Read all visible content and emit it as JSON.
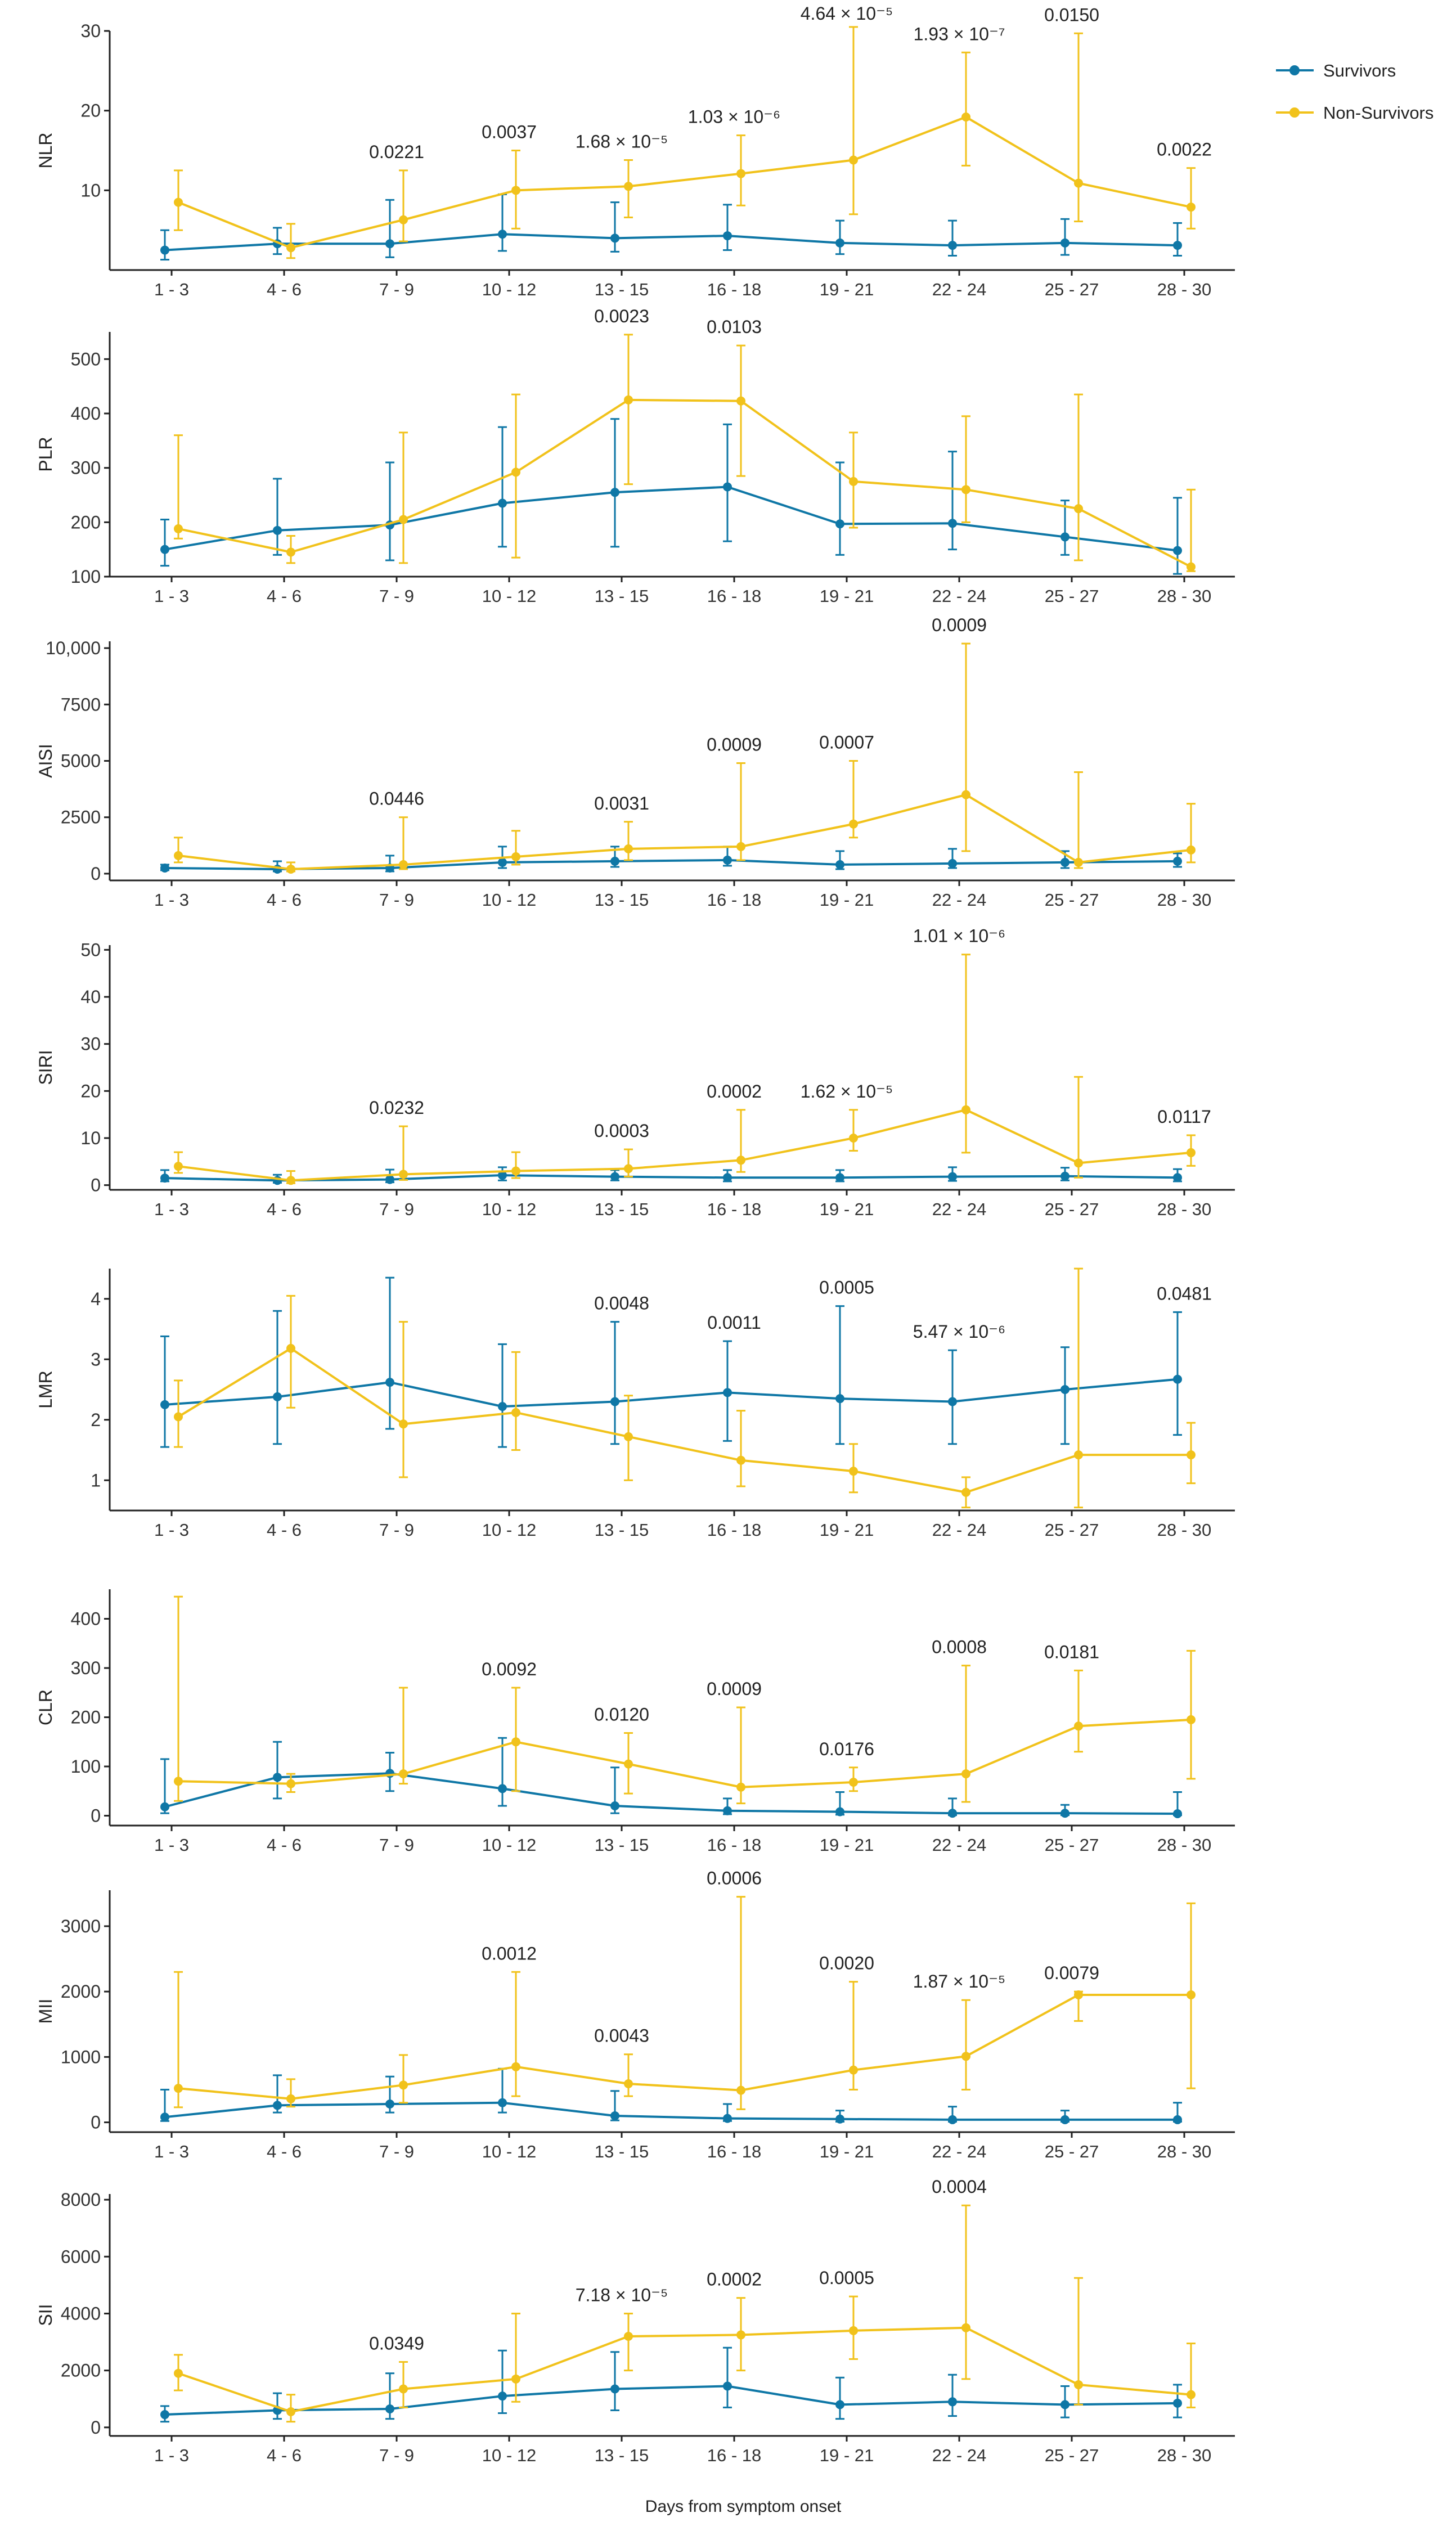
{
  "legend": {
    "position": "top-right",
    "items": [
      {
        "name": "Survivors",
        "color": "#0f77a6"
      },
      {
        "name": "Non-Survivors",
        "color": "#f1c21b"
      }
    ]
  },
  "xlabel": "Days from symptom onset",
  "categories": [
    "1 - 3",
    "4 - 6",
    "7 - 9",
    "10 - 12",
    "13 - 15",
    "16 - 18",
    "19 - 21",
    "22 - 24",
    "25 - 27",
    "28 - 30"
  ],
  "chart_data": [
    {
      "type": "line",
      "ylabel": "NLR",
      "ylim": [
        0,
        30
      ],
      "yticks": [
        10,
        20,
        30
      ],
      "ytick_labels": [
        "10",
        "20",
        "30"
      ],
      "grid": false,
      "series": [
        {
          "name": "Survivors",
          "values": [
            2.5,
            3.3,
            3.3,
            4.5,
            4.0,
            4.3,
            3.4,
            3.1,
            3.4,
            3.1
          ],
          "lower": [
            1.3,
            2.0,
            1.6,
            2.4,
            2.3,
            2.5,
            2.0,
            1.8,
            1.9,
            1.8
          ],
          "upper": [
            5.0,
            5.3,
            8.8,
            9.5,
            8.5,
            8.2,
            6.2,
            6.2,
            6.4,
            5.9
          ]
        },
        {
          "name": "Non-Survivors",
          "values": [
            8.5,
            2.8,
            6.3,
            10.0,
            10.5,
            12.1,
            13.8,
            19.2,
            10.9,
            7.9
          ],
          "lower": [
            5.0,
            1.5,
            3.6,
            5.2,
            6.6,
            8.1,
            7.0,
            13.1,
            6.1,
            5.2
          ],
          "upper": [
            12.5,
            5.8,
            12.5,
            15.0,
            13.8,
            16.9,
            30.5,
            27.3,
            29.7,
            12.8
          ]
        }
      ],
      "annotations": [
        {
          "index": 2,
          "text": "0.0221"
        },
        {
          "index": 3,
          "text": "0.0037"
        },
        {
          "index": 4,
          "text": "1.68 × 10⁻⁵"
        },
        {
          "index": 5,
          "text": "1.03 × 10⁻⁶"
        },
        {
          "index": 6,
          "text": "4.64 × 10⁻⁵"
        },
        {
          "index": 7,
          "text": "1.93 × 10⁻⁷"
        },
        {
          "index": 8,
          "text": "0.0150"
        },
        {
          "index": 9,
          "text": "0.0022"
        }
      ]
    },
    {
      "type": "line",
      "ylabel": "PLR",
      "ylim": [
        100,
        550
      ],
      "yticks": [
        100,
        200,
        300,
        400,
        500
      ],
      "ytick_labels": [
        "100",
        "200",
        "300",
        "400",
        "500"
      ],
      "grid": false,
      "series": [
        {
          "name": "Survivors",
          "values": [
            150,
            185,
            195,
            235,
            255,
            265,
            197,
            198,
            173,
            148
          ],
          "lower": [
            120,
            140,
            130,
            155,
            155,
            165,
            140,
            150,
            140,
            105
          ],
          "upper": [
            205,
            280,
            310,
            375,
            390,
            380,
            310,
            330,
            240,
            245
          ]
        },
        {
          "name": "Non-Survivors",
          "values": [
            188,
            145,
            205,
            292,
            425,
            423,
            275,
            260,
            225,
            118
          ],
          "lower": [
            170,
            125,
            125,
            135,
            270,
            285,
            190,
            200,
            130,
            110
          ],
          "upper": [
            360,
            175,
            365,
            435,
            545,
            525,
            365,
            395,
            435,
            260
          ]
        }
      ],
      "annotations": [
        {
          "index": 4,
          "text": "0.0023"
        },
        {
          "index": 5,
          "text": "0.0103"
        }
      ]
    },
    {
      "type": "line",
      "ylabel": "AISI",
      "ylim": [
        -300,
        10300
      ],
      "yticks": [
        0,
        2500,
        5000,
        7500,
        10000
      ],
      "ytick_labels": [
        "0",
        "2500",
        "5000",
        "7500",
        "10,000"
      ],
      "grid": false,
      "series": [
        {
          "name": "Survivors",
          "values": [
            250,
            200,
            250,
            500,
            550,
            600,
            400,
            450,
            500,
            550
          ],
          "lower": [
            150,
            100,
            100,
            250,
            300,
            350,
            200,
            250,
            250,
            300
          ],
          "upper": [
            400,
            550,
            800,
            1200,
            1200,
            1200,
            1000,
            1100,
            1000,
            900
          ]
        },
        {
          "name": "Non-Survivors",
          "values": [
            800,
            200,
            400,
            750,
            1100,
            1200,
            2200,
            3500,
            500,
            1050
          ],
          "lower": [
            500,
            100,
            200,
            400,
            600,
            600,
            1600,
            1000,
            250,
            500
          ],
          "upper": [
            1600,
            500,
            2500,
            1900,
            2300,
            4900,
            5000,
            10200,
            4500,
            3100
          ]
        }
      ],
      "annotations": [
        {
          "index": 2,
          "text": "0.0446"
        },
        {
          "index": 4,
          "text": "0.0031"
        },
        {
          "index": 5,
          "text": "0.0009"
        },
        {
          "index": 6,
          "text": "0.0007"
        },
        {
          "index": 7,
          "text": "0.0009"
        }
      ]
    },
    {
      "type": "line",
      "ylabel": "SIRI",
      "ylim": [
        -1,
        51
      ],
      "yticks": [
        0,
        10,
        20,
        30,
        40,
        50
      ],
      "ytick_labels": [
        "0",
        "10",
        "20",
        "30",
        "40",
        "50"
      ],
      "grid": false,
      "series": [
        {
          "name": "Survivors",
          "values": [
            1.5,
            1.0,
            1.2,
            2.1,
            1.8,
            1.6,
            1.6,
            1.8,
            1.9,
            1.6
          ],
          "lower": [
            0.8,
            0.5,
            0.6,
            1.0,
            1.0,
            0.8,
            0.8,
            0.9,
            1.0,
            0.8
          ],
          "upper": [
            3.2,
            2.2,
            3.3,
            3.8,
            3.2,
            3.2,
            3.2,
            3.8,
            3.7,
            3.4
          ]
        },
        {
          "name": "Non-Survivors",
          "values": [
            4.0,
            1.0,
            2.3,
            3.0,
            3.5,
            5.3,
            10.0,
            16.0,
            4.7,
            6.9
          ],
          "lower": [
            2.6,
            0.4,
            1.1,
            1.5,
            1.8,
            2.8,
            7.3,
            6.9,
            1.6,
            4.1
          ],
          "upper": [
            7.0,
            3.0,
            12.5,
            7.0,
            7.6,
            16.0,
            16.0,
            49.0,
            23.0,
            10.6
          ]
        }
      ],
      "annotations": [
        {
          "index": 2,
          "text": "0.0232"
        },
        {
          "index": 4,
          "text": "0.0003"
        },
        {
          "index": 5,
          "text": "0.0002"
        },
        {
          "index": 6,
          "text": "1.62 × 10⁻⁵"
        },
        {
          "index": 7,
          "text": "1.01 × 10⁻⁶"
        },
        {
          "index": 9,
          "text": "0.0117"
        }
      ]
    },
    {
      "type": "line",
      "ylabel": "LMR",
      "ylim": [
        0.5,
        4.5
      ],
      "yticks": [
        1,
        2,
        3,
        4
      ],
      "ytick_labels": [
        "1",
        "2",
        "3",
        "4"
      ],
      "grid": false,
      "series": [
        {
          "name": "Survivors",
          "values": [
            2.25,
            2.38,
            2.62,
            2.22,
            2.3,
            2.45,
            2.35,
            2.3,
            2.5,
            2.67
          ],
          "lower": [
            1.55,
            1.6,
            1.85,
            1.55,
            1.6,
            1.65,
            1.6,
            1.6,
            1.6,
            1.75
          ],
          "upper": [
            3.38,
            3.8,
            4.35,
            3.25,
            3.62,
            3.3,
            3.88,
            3.15,
            3.2,
            3.78
          ]
        },
        {
          "name": "Non-Survivors",
          "values": [
            2.05,
            3.18,
            1.93,
            2.12,
            1.72,
            1.33,
            1.15,
            0.8,
            1.42,
            1.42
          ],
          "lower": [
            1.55,
            2.2,
            1.05,
            1.5,
            1.0,
            0.9,
            0.8,
            0.55,
            0.55,
            0.95
          ],
          "upper": [
            2.65,
            4.05,
            3.62,
            3.12,
            2.4,
            2.15,
            1.6,
            1.05,
            4.5,
            1.95
          ]
        }
      ],
      "annotations": [
        {
          "index": 4,
          "text": "0.0048"
        },
        {
          "index": 5,
          "text": "0.0011"
        },
        {
          "index": 6,
          "text": "0.0005"
        },
        {
          "index": 7,
          "text": "5.47 × 10⁻⁶"
        },
        {
          "index": 9,
          "text": "0.0481"
        }
      ]
    },
    {
      "type": "line",
      "ylabel": "CLR",
      "ylim": [
        -20,
        460
      ],
      "yticks": [
        0,
        100,
        200,
        300,
        400
      ],
      "ytick_labels": [
        "0",
        "100",
        "200",
        "300",
        "400"
      ],
      "grid": false,
      "series": [
        {
          "name": "Survivors",
          "values": [
            18,
            78,
            86,
            55,
            20,
            10,
            8,
            5,
            5,
            4
          ],
          "lower": [
            5,
            35,
            50,
            20,
            5,
            3,
            2,
            1,
            1,
            1
          ],
          "upper": [
            115,
            150,
            128,
            158,
            98,
            35,
            48,
            35,
            22,
            48
          ]
        },
        {
          "name": "Non-Survivors",
          "values": [
            70,
            65,
            85,
            150,
            105,
            58,
            68,
            85,
            182,
            195
          ],
          "lower": [
            30,
            48,
            65,
            50,
            45,
            25,
            50,
            28,
            130,
            75
          ],
          "upper": [
            445,
            85,
            260,
            260,
            168,
            220,
            98,
            305,
            295,
            335
          ]
        }
      ],
      "annotations": [
        {
          "index": 3,
          "text": "0.0092"
        },
        {
          "index": 4,
          "text": "0.0120"
        },
        {
          "index": 5,
          "text": "0.0009"
        },
        {
          "index": 6,
          "text": "0.0176"
        },
        {
          "index": 7,
          "text": "0.0008"
        },
        {
          "index": 8,
          "text": "0.0181"
        }
      ]
    },
    {
      "type": "line",
      "ylabel": "MII",
      "ylim": [
        -150,
        3550
      ],
      "yticks": [
        0,
        1000,
        2000,
        3000
      ],
      "ytick_labels": [
        "0",
        "1000",
        "2000",
        "3000"
      ],
      "grid": false,
      "series": [
        {
          "name": "Survivors",
          "values": [
            80,
            260,
            280,
            300,
            100,
            60,
            50,
            40,
            40,
            40
          ],
          "lower": [
            20,
            150,
            150,
            150,
            30,
            20,
            10,
            10,
            10,
            10
          ],
          "upper": [
            500,
            720,
            700,
            820,
            480,
            280,
            180,
            240,
            180,
            300
          ]
        },
        {
          "name": "Non-Survivors",
          "values": [
            520,
            360,
            570,
            850,
            590,
            490,
            800,
            1010,
            1950,
            1950
          ],
          "lower": [
            230,
            240,
            300,
            400,
            400,
            200,
            500,
            500,
            1550,
            520
          ],
          "upper": [
            2300,
            660,
            1030,
            2300,
            1040,
            3450,
            2150,
            1870,
            2000,
            3350
          ]
        }
      ],
      "annotations": [
        {
          "index": 3,
          "text": "0.0012"
        },
        {
          "index": 4,
          "text": "0.0043"
        },
        {
          "index": 5,
          "text": "0.0006"
        },
        {
          "index": 6,
          "text": "0.0020"
        },
        {
          "index": 7,
          "text": "1.87 × 10⁻⁵"
        },
        {
          "index": 8,
          "text": "0.0079"
        }
      ]
    },
    {
      "type": "line",
      "ylabel": "SII",
      "ylim": [
        -300,
        8200
      ],
      "yticks": [
        0,
        2000,
        4000,
        6000,
        8000
      ],
      "ytick_labels": [
        "0",
        "2000",
        "4000",
        "6000",
        "8000"
      ],
      "grid": false,
      "series": [
        {
          "name": "Survivors",
          "values": [
            450,
            600,
            650,
            1100,
            1350,
            1450,
            800,
            900,
            800,
            850
          ],
          "lower": [
            200,
            300,
            300,
            500,
            600,
            700,
            300,
            400,
            350,
            350
          ],
          "upper": [
            750,
            1200,
            1900,
            2700,
            2650,
            2800,
            1750,
            1850,
            1450,
            1500
          ]
        },
        {
          "name": "Non-Survivors",
          "values": [
            1900,
            550,
            1350,
            1700,
            3200,
            3250,
            3400,
            3500,
            1500,
            1150
          ],
          "lower": [
            1300,
            200,
            700,
            900,
            2000,
            2000,
            2400,
            1700,
            800,
            700
          ],
          "upper": [
            2550,
            1150,
            2300,
            4000,
            4000,
            4550,
            4600,
            7800,
            5250,
            2950
          ]
        }
      ],
      "annotations": [
        {
          "index": 2,
          "text": "0.0349"
        },
        {
          "index": 4,
          "text": "7.18 × 10⁻⁵"
        },
        {
          "index": 5,
          "text": "0.0002"
        },
        {
          "index": 6,
          "text": "0.0005"
        },
        {
          "index": 7,
          "text": "0.0004"
        }
      ]
    }
  ]
}
